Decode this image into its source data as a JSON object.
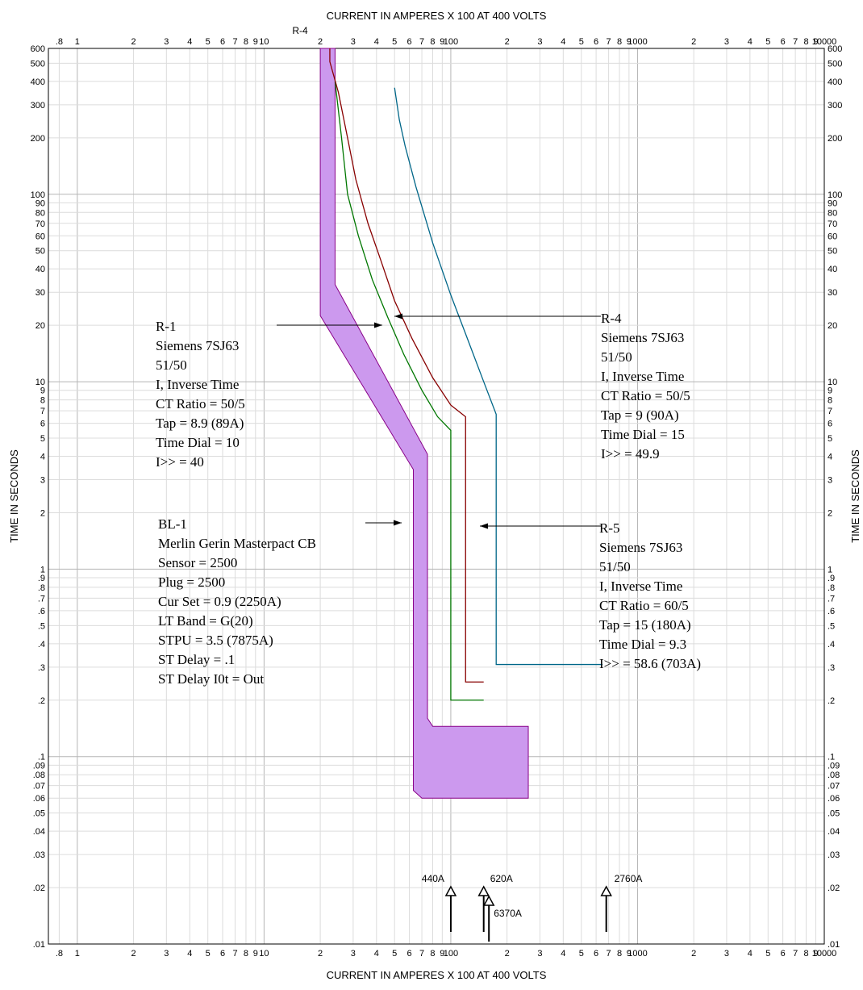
{
  "chart_data": {
    "type": "line",
    "title": "",
    "xlabel": "CURRENT IN AMPERES X 100 AT 400 VOLTS",
    "ylabel": "TIME IN SECONDS",
    "x_scale": "log",
    "y_scale": "log",
    "xlim": [
      0.7,
      10000
    ],
    "ylim": [
      0.01,
      600
    ],
    "grid": true,
    "top_label": "R-4",
    "x_ticks": [
      {
        "v": 0.8,
        "t": ".8"
      },
      {
        "v": 1,
        "t": "1"
      },
      {
        "v": 2,
        "t": "2"
      },
      {
        "v": 3,
        "t": "3"
      },
      {
        "v": 4,
        "t": "4"
      },
      {
        "v": 5,
        "t": "5"
      },
      {
        "v": 6,
        "t": "6"
      },
      {
        "v": 7,
        "t": "7"
      },
      {
        "v": 8,
        "t": "8"
      },
      {
        "v": 9,
        "t": "9"
      },
      {
        "v": 10,
        "t": "10"
      },
      {
        "v": 20,
        "t": "2"
      },
      {
        "v": 30,
        "t": "3"
      },
      {
        "v": 40,
        "t": "4"
      },
      {
        "v": 50,
        "t": "5"
      },
      {
        "v": 60,
        "t": "6"
      },
      {
        "v": 70,
        "t": "7"
      },
      {
        "v": 80,
        "t": "8"
      },
      {
        "v": 90,
        "t": "9"
      },
      {
        "v": 100,
        "t": "100"
      },
      {
        "v": 200,
        "t": "2"
      },
      {
        "v": 300,
        "t": "3"
      },
      {
        "v": 400,
        "t": "4"
      },
      {
        "v": 500,
        "t": "5"
      },
      {
        "v": 600,
        "t": "6"
      },
      {
        "v": 700,
        "t": "7"
      },
      {
        "v": 800,
        "t": "8"
      },
      {
        "v": 900,
        "t": "9"
      },
      {
        "v": 1000,
        "t": "1000"
      },
      {
        "v": 2000,
        "t": "2"
      },
      {
        "v": 3000,
        "t": "3"
      },
      {
        "v": 4000,
        "t": "4"
      },
      {
        "v": 5000,
        "t": "5"
      },
      {
        "v": 6000,
        "t": "6"
      },
      {
        "v": 7000,
        "t": "7"
      },
      {
        "v": 8000,
        "t": "8"
      },
      {
        "v": 9000,
        "t": "9"
      },
      {
        "v": 10000,
        "t": "10000"
      }
    ],
    "y_ticks": [
      {
        "v": 600,
        "t": "600"
      },
      {
        "v": 500,
        "t": "500"
      },
      {
        "v": 400,
        "t": "400"
      },
      {
        "v": 300,
        "t": "300"
      },
      {
        "v": 200,
        "t": "200"
      },
      {
        "v": 100,
        "t": "100"
      },
      {
        "v": 90,
        "t": "90"
      },
      {
        "v": 80,
        "t": "80"
      },
      {
        "v": 70,
        "t": "70"
      },
      {
        "v": 60,
        "t": "60"
      },
      {
        "v": 50,
        "t": "50"
      },
      {
        "v": 40,
        "t": "40"
      },
      {
        "v": 30,
        "t": "30"
      },
      {
        "v": 20,
        "t": "20"
      },
      {
        "v": 10,
        "t": "10"
      },
      {
        "v": 9,
        "t": "9"
      },
      {
        "v": 8,
        "t": "8"
      },
      {
        "v": 7,
        "t": "7"
      },
      {
        "v": 6,
        "t": "6"
      },
      {
        "v": 5,
        "t": "5"
      },
      {
        "v": 4,
        "t": "4"
      },
      {
        "v": 3,
        "t": "3"
      },
      {
        "v": 2,
        "t": "2"
      },
      {
        "v": 1,
        "t": "1"
      },
      {
        "v": 0.9,
        "t": ".9"
      },
      {
        "v": 0.8,
        "t": ".8"
      },
      {
        "v": 0.7,
        "t": ".7"
      },
      {
        "v": 0.6,
        "t": ".6"
      },
      {
        "v": 0.5,
        "t": ".5"
      },
      {
        "v": 0.4,
        "t": ".4"
      },
      {
        "v": 0.3,
        "t": ".3"
      },
      {
        "v": 0.2,
        "t": ".2"
      },
      {
        "v": 0.1,
        "t": ".1"
      },
      {
        "v": 0.09,
        "t": ".09"
      },
      {
        "v": 0.08,
        "t": ".08"
      },
      {
        "v": 0.07,
        "t": ".07"
      },
      {
        "v": 0.06,
        "t": ".06"
      },
      {
        "v": 0.05,
        "t": ".05"
      },
      {
        "v": 0.04,
        "t": ".04"
      },
      {
        "v": 0.03,
        "t": ".03"
      },
      {
        "v": 0.02,
        "t": ".02"
      },
      {
        "v": 0.01,
        "t": ".01"
      }
    ],
    "band": {
      "name": "BL-1",
      "color": "#cc99ee",
      "stroke": "#880088",
      "points": [
        [
          20,
          600
        ],
        [
          20,
          22.5
        ],
        [
          63,
          3.4
        ],
        [
          63,
          0.066
        ],
        [
          70,
          0.06
        ],
        [
          260,
          0.06
        ],
        [
          260,
          0.145
        ],
        [
          80,
          0.145
        ],
        [
          75,
          0.16
        ],
        [
          75,
          4.1
        ],
        [
          24,
          33
        ],
        [
          24,
          600
        ]
      ]
    },
    "series": [
      {
        "name": "R-1",
        "color": "#007700",
        "points": [
          [
            24,
            400
          ],
          [
            26,
            200
          ],
          [
            28,
            100
          ],
          [
            32,
            60
          ],
          [
            38,
            35
          ],
          [
            46,
            22
          ],
          [
            56,
            14
          ],
          [
            70,
            9
          ],
          [
            85,
            6.5
          ],
          [
            100,
            5.5
          ],
          [
            100,
            0.2
          ],
          [
            150,
            0.2
          ]
        ]
      },
      {
        "name": "R-4",
        "color": "#880000",
        "points": [
          [
            22.5,
            600
          ],
          [
            22.5,
            510
          ],
          [
            22.5,
            510
          ],
          [
            25,
            350
          ],
          [
            28,
            200
          ],
          [
            31,
            120
          ],
          [
            36,
            70
          ],
          [
            42,
            45
          ],
          [
            50,
            27
          ],
          [
            62,
            17
          ],
          [
            80,
            10.5
          ],
          [
            100,
            7.5
          ],
          [
            120,
            6.5
          ],
          [
            120,
            0.25
          ],
          [
            150,
            0.25
          ]
        ]
      },
      {
        "name": "R-5",
        "color": "#006688",
        "points": [
          [
            50,
            370
          ],
          [
            53,
            250
          ],
          [
            57,
            180
          ],
          [
            65,
            110
          ],
          [
            80,
            55
          ],
          [
            100,
            29
          ],
          [
            120,
            18
          ],
          [
            150,
            10
          ],
          [
            175,
            6.7
          ],
          [
            175,
            0.31
          ],
          [
            650,
            0.31
          ]
        ]
      }
    ],
    "annotations": [
      {
        "lines": [
          "R-1",
          "Siemens 7SJ63",
          "51/50",
          "I, Inverse Time",
          "CT Ratio = 50/5",
          "Tap = 8.9 (89A)",
          "Time Dial = 10",
          "I>> = 40"
        ]
      },
      {
        "lines": [
          "R-4",
          "Siemens 7SJ63",
          "51/50",
          "I, Inverse Time",
          "CT Ratio = 50/5",
          "Tap = 9 (90A)",
          "Time Dial = 15",
          "I>> = 49.9"
        ]
      },
      {
        "lines": [
          "BL-1",
          "Merlin Gerin Masterpact CB",
          "Sensor = 2500",
          "Plug = 2500",
          "Cur Set = 0.9 (2250A)",
          "LT Band = G(20)",
          "STPU = 3.5 (7875A)",
          "ST Delay = .1",
          "ST Delay I0t = Out"
        ]
      },
      {
        "lines": [
          "R-5",
          "Siemens 7SJ63",
          "51/50",
          "I, Inverse Time",
          "CT Ratio = 60/5",
          "Tap = 15 (180A)",
          "Time Dial = 9.3",
          "I>> = 58.6 (703A)"
        ]
      }
    ],
    "fault_markers": [
      {
        "label": "440A",
        "x": 100
      },
      {
        "label": "620A",
        "x": 150
      },
      {
        "label": "6370A",
        "x": 160
      },
      {
        "label": "2760A",
        "x": 680
      }
    ]
  }
}
